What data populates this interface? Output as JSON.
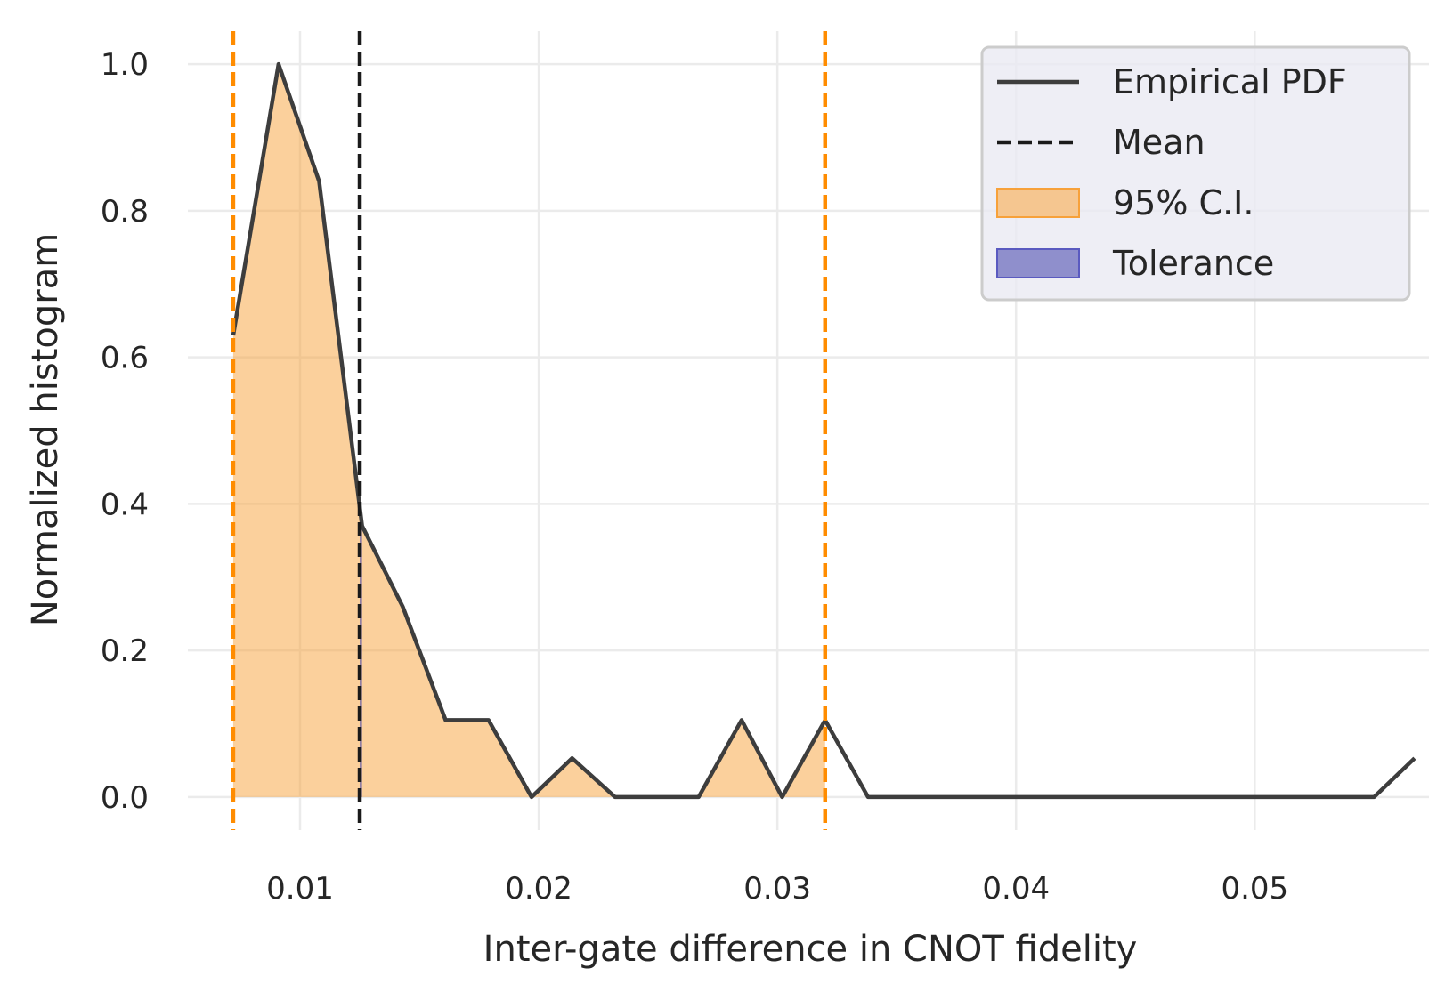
{
  "chart_data": {
    "type": "line",
    "title": "",
    "xlabel": "Inter-gate difference in CNOT fidelity",
    "ylabel": "Normalized histogram",
    "xlim": [
      0.0053,
      0.0573
    ],
    "ylim": [
      -0.045,
      1.045
    ],
    "grid": true,
    "legend_position": "top-right",
    "xticks": [
      {
        "value": 0.01,
        "label": "0.01"
      },
      {
        "value": 0.02,
        "label": "0.02"
      },
      {
        "value": 0.03,
        "label": "0.03"
      },
      {
        "value": 0.04,
        "label": "0.04"
      },
      {
        "value": 0.05,
        "label": "0.05"
      }
    ],
    "yticks": [
      {
        "value": 0.0,
        "label": "0.0"
      },
      {
        "value": 0.2,
        "label": "0.2"
      },
      {
        "value": 0.4,
        "label": "0.4"
      },
      {
        "value": 0.6,
        "label": "0.6"
      },
      {
        "value": 0.8,
        "label": "0.8"
      },
      {
        "value": 1.0,
        "label": "1.0"
      }
    ],
    "series": [
      {
        "name": "Empirical PDF",
        "style": "solid",
        "color": "#3d3d3d",
        "x": [
          0.0072,
          0.0091,
          0.0108,
          0.0126,
          0.0143,
          0.0161,
          0.0179,
          0.0197,
          0.0214,
          0.0232,
          0.0249,
          0.0267,
          0.0285,
          0.0302,
          0.032,
          0.0338,
          0.0356,
          0.0373,
          0.0391,
          0.0409,
          0.0426,
          0.0444,
          0.0462,
          0.0479,
          0.0497,
          0.0515,
          0.0532,
          0.055,
          0.0567
        ],
        "y": [
          0.63,
          1.0,
          0.84,
          0.37,
          0.26,
          0.105,
          0.105,
          0.0,
          0.053,
          0.0,
          0.0,
          0.0,
          0.105,
          0.0,
          0.105,
          0.0,
          0.0,
          0.0,
          0.0,
          0.0,
          0.0,
          0.0,
          0.0,
          0.0,
          0.0,
          0.0,
          0.0,
          0.0,
          0.053
        ]
      }
    ],
    "reference_lines": [
      {
        "name": "Mean",
        "x": 0.0125,
        "style": "dashed",
        "color": "#1a1a1a"
      },
      {
        "name": "95% C.I. lower",
        "x": 0.0072,
        "style": "dashed",
        "color": "#ff8c00"
      },
      {
        "name": "95% C.I. upper",
        "x": 0.032,
        "style": "dashed",
        "color": "#ff8c00"
      }
    ],
    "fills": [
      {
        "name": "95% C.I.",
        "x_range": [
          0.0072,
          0.032
        ],
        "color": "#f7a13a",
        "opacity": 0.5
      },
      {
        "name": "Tolerance",
        "x_range": [
          0.0125,
          0.0126
        ],
        "color": "#3a3aa8",
        "opacity": 0.55
      }
    ],
    "legend": [
      {
        "label": "Empirical PDF",
        "kind": "solid-line",
        "color": "#3d3d3d"
      },
      {
        "label": "Mean",
        "kind": "dashed-line",
        "color": "#1a1a1a"
      },
      {
        "label": "95% C.I.",
        "kind": "patch",
        "color": "#f5c690",
        "edge": "#f7a13a"
      },
      {
        "label": "Tolerance",
        "kind": "patch",
        "color": "#8f8fcc",
        "edge": "#5a5ac0"
      }
    ]
  }
}
